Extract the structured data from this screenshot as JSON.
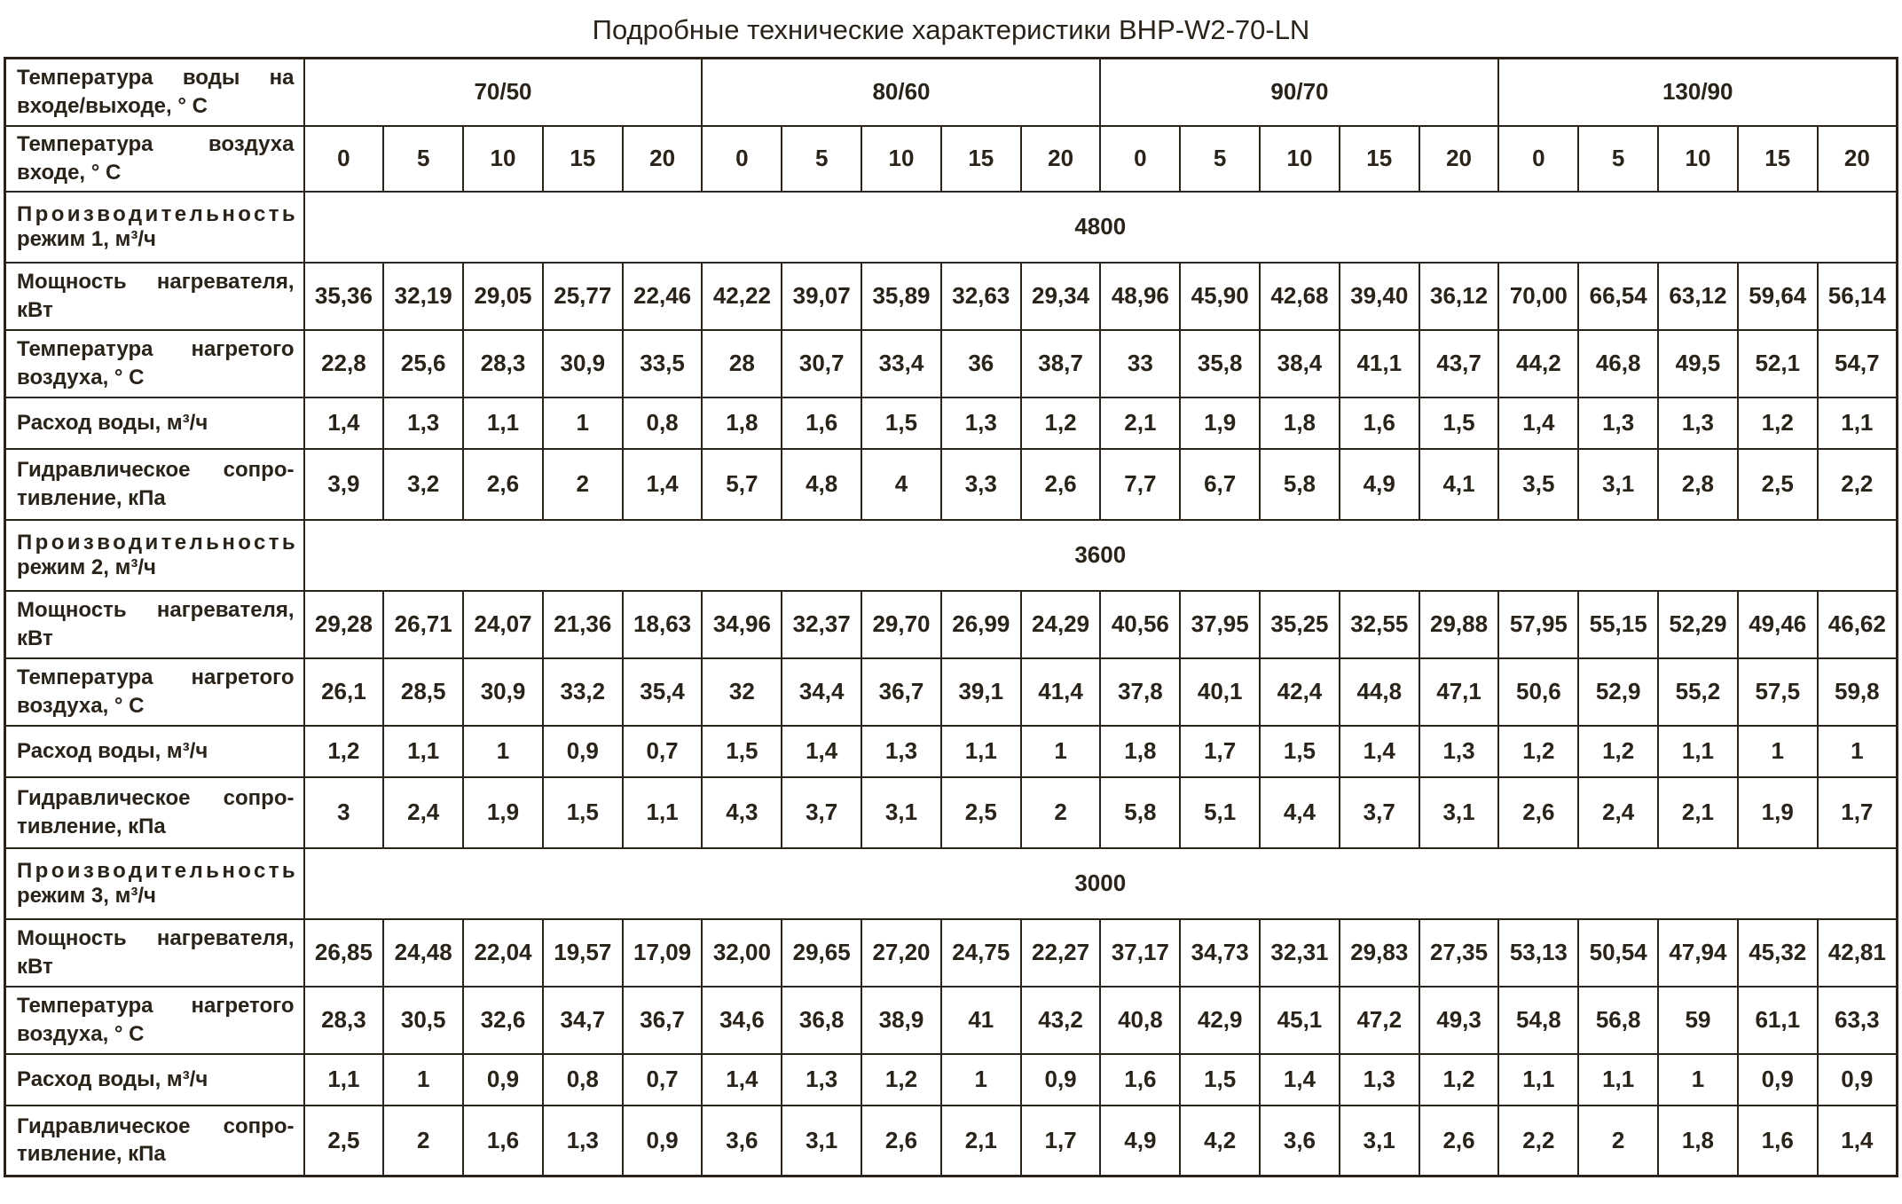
{
  "page_title": "Подробные технические характеристики BHP-W2-70-LN",
  "colors": {
    "ink": "#29231a",
    "border": "#29231a",
    "background": "#ffffff"
  },
  "table": {
    "water_temp_label": "Температура воды на входе/выходе, ° С",
    "water_temp_groups": [
      "70/50",
      "80/60",
      "90/70",
      "130/90"
    ],
    "air_temp_label": "Температура воздуха входе, ° С",
    "air_temps_per_group": [
      "0",
      "5",
      "10",
      "15",
      "20"
    ],
    "row_labels": {
      "power": "Мощность нагревателя, кВт",
      "heated_air": "Температура нагретого воздуха, ° С",
      "water_flow": "Расход воды, м³/ч",
      "hydraulic": "Гидравлическое сопро­тивление, кПа"
    },
    "sections": [
      {
        "capacity_label_line1": "Производительность",
        "capacity_label_line2": "режим 1, м³/ч",
        "capacity_value": "4800",
        "power": [
          "35,36",
          "32,19",
          "29,05",
          "25,77",
          "22,46",
          "42,22",
          "39,07",
          "35,89",
          "32,63",
          "29,34",
          "48,96",
          "45,90",
          "42,68",
          "39,40",
          "36,12",
          "70,00",
          "66,54",
          "63,12",
          "59,64",
          "56,14"
        ],
        "heated_air": [
          "22,8",
          "25,6",
          "28,3",
          "30,9",
          "33,5",
          "28",
          "30,7",
          "33,4",
          "36",
          "38,7",
          "33",
          "35,8",
          "38,4",
          "41,1",
          "43,7",
          "44,2",
          "46,8",
          "49,5",
          "52,1",
          "54,7"
        ],
        "water_flow": [
          "1,4",
          "1,3",
          "1,1",
          "1",
          "0,8",
          "1,8",
          "1,6",
          "1,5",
          "1,3",
          "1,2",
          "2,1",
          "1,9",
          "1,8",
          "1,6",
          "1,5",
          "1,4",
          "1,3",
          "1,3",
          "1,2",
          "1,1"
        ],
        "hydraulic": [
          "3,9",
          "3,2",
          "2,6",
          "2",
          "1,4",
          "5,7",
          "4,8",
          "4",
          "3,3",
          "2,6",
          "7,7",
          "6,7",
          "5,8",
          "4,9",
          "4,1",
          "3,5",
          "3,1",
          "2,8",
          "2,5",
          "2,2"
        ]
      },
      {
        "capacity_label_line1": "Производительность",
        "capacity_label_line2": "режим 2, м³/ч",
        "capacity_value": "3600",
        "power": [
          "29,28",
          "26,71",
          "24,07",
          "21,36",
          "18,63",
          "34,96",
          "32,37",
          "29,70",
          "26,99",
          "24,29",
          "40,56",
          "37,95",
          "35,25",
          "32,55",
          "29,88",
          "57,95",
          "55,15",
          "52,29",
          "49,46",
          "46,62"
        ],
        "heated_air": [
          "26,1",
          "28,5",
          "30,9",
          "33,2",
          "35,4",
          "32",
          "34,4",
          "36,7",
          "39,1",
          "41,4",
          "37,8",
          "40,1",
          "42,4",
          "44,8",
          "47,1",
          "50,6",
          "52,9",
          "55,2",
          "57,5",
          "59,8"
        ],
        "water_flow": [
          "1,2",
          "1,1",
          "1",
          "0,9",
          "0,7",
          "1,5",
          "1,4",
          "1,3",
          "1,1",
          "1",
          "1,8",
          "1,7",
          "1,5",
          "1,4",
          "1,3",
          "1,2",
          "1,2",
          "1,1",
          "1",
          "1"
        ],
        "hydraulic": [
          "3",
          "2,4",
          "1,9",
          "1,5",
          "1,1",
          "4,3",
          "3,7",
          "3,1",
          "2,5",
          "2",
          "5,8",
          "5,1",
          "4,4",
          "3,7",
          "3,1",
          "2,6",
          "2,4",
          "2,1",
          "1,9",
          "1,7"
        ]
      },
      {
        "capacity_label_line1": "Производительность",
        "capacity_label_line2": "режим 3, м³/ч",
        "capacity_value": "3000",
        "power": [
          "26,85",
          "24,48",
          "22,04",
          "19,57",
          "17,09",
          "32,00",
          "29,65",
          "27,20",
          "24,75",
          "22,27",
          "37,17",
          "34,73",
          "32,31",
          "29,83",
          "27,35",
          "53,13",
          "50,54",
          "47,94",
          "45,32",
          "42,81"
        ],
        "heated_air": [
          "28,3",
          "30,5",
          "32,6",
          "34,7",
          "36,7",
          "34,6",
          "36,8",
          "38,9",
          "41",
          "43,2",
          "40,8",
          "42,9",
          "45,1",
          "47,2",
          "49,3",
          "54,8",
          "56,8",
          "59",
          "61,1",
          "63,3"
        ],
        "water_flow": [
          "1,1",
          "1",
          "0,9",
          "0,8",
          "0,7",
          "1,4",
          "1,3",
          "1,2",
          "1",
          "0,9",
          "1,6",
          "1,5",
          "1,4",
          "1,3",
          "1,2",
          "1,1",
          "1,1",
          "1",
          "0,9",
          "0,9"
        ],
        "hydraulic": [
          "2,5",
          "2",
          "1,6",
          "1,3",
          "0,9",
          "3,6",
          "3,1",
          "2,6",
          "2,1",
          "1,7",
          "4,9",
          "4,2",
          "3,6",
          "3,1",
          "2,6",
          "2,2",
          "2",
          "1,8",
          "1,6",
          "1,4"
        ]
      }
    ]
  }
}
